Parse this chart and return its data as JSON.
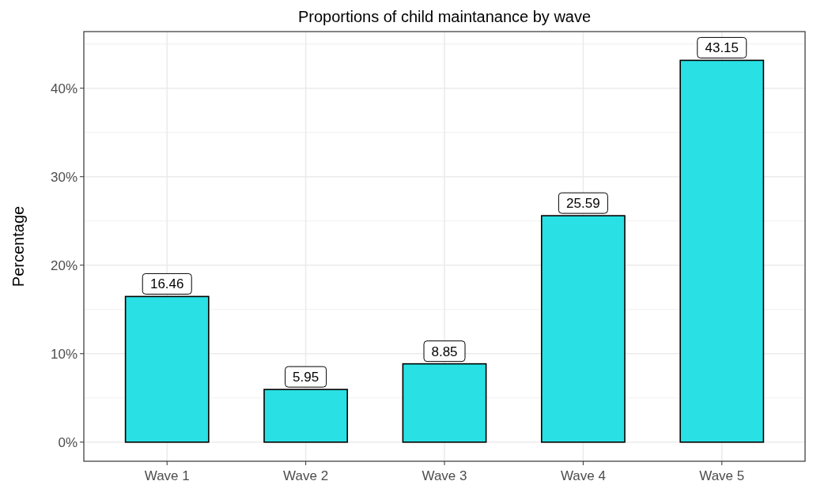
{
  "chart_data": {
    "type": "bar",
    "title": "Proportions of child maintanance by wave",
    "ylabel": "Percentage",
    "categories": [
      "Wave 1",
      "Wave 2",
      "Wave 3",
      "Wave 4",
      "Wave 5"
    ],
    "values": [
      16.46,
      5.95,
      8.85,
      25.59,
      43.15
    ],
    "color": "#29e0e4",
    "ylim": [
      -2.16,
      46.4
    ],
    "yticks": [
      {
        "value": 0,
        "label": "0%"
      },
      {
        "value": 10,
        "label": "10%"
      },
      {
        "value": 20,
        "label": "20%"
      },
      {
        "value": 30,
        "label": "30%"
      },
      {
        "value": 40,
        "label": "40%"
      }
    ],
    "grid": true,
    "data_labels": true
  }
}
